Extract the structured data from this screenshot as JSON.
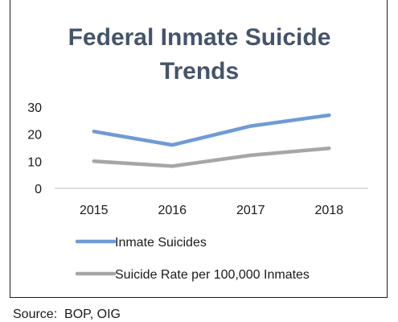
{
  "chart_data": {
    "type": "line",
    "title_lines": [
      "Federal Inmate Suicide",
      "Trends"
    ],
    "categories": [
      "2015",
      "2016",
      "2017",
      "2018"
    ],
    "series": [
      {
        "name": "Inmate Suicides",
        "values": [
          21,
          16,
          23,
          27
        ],
        "color": "#6f9bd4"
      },
      {
        "name": "Suicide Rate per 100,000 Inmates",
        "values": [
          10,
          8.2,
          12.2,
          14.8
        ],
        "color": "#a6a6a6"
      }
    ],
    "yticks": [
      "0",
      "10",
      "20",
      "30"
    ],
    "ylim": [
      0,
      30
    ],
    "grid": false,
    "legend_position": "bottom"
  },
  "source_note": "Source:  BOP, OIG"
}
